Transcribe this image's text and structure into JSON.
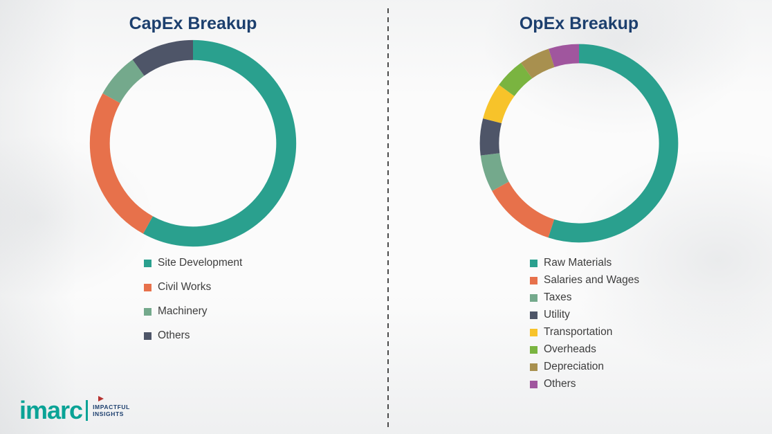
{
  "chart_data": [
    {
      "type": "pie",
      "variant": "donut",
      "title": "CapEx Breakup",
      "labels": [
        "Site Development",
        "Civil Works",
        "Machinery",
        "Others"
      ],
      "values": [
        58,
        25,
        7,
        10
      ],
      "colors": [
        "#2aa08e",
        "#e7714b",
        "#74a98c",
        "#4e5568"
      ],
      "start_angle_deg": 0,
      "direction": "clockwise",
      "legend_position": "bottom-left"
    },
    {
      "type": "pie",
      "variant": "donut",
      "title": "OpEx Breakup",
      "labels": [
        "Raw Materials",
        "Salaries and Wages",
        "Taxes",
        "Utility",
        "Transportation",
        "Overheads",
        "Depreciation",
        "Others"
      ],
      "values": [
        55,
        12,
        6,
        6,
        6,
        5,
        5,
        5
      ],
      "colors": [
        "#2aa08e",
        "#e7714b",
        "#74a98c",
        "#4e5568",
        "#f7c32a",
        "#7ab440",
        "#a8904f",
        "#a0569e"
      ],
      "start_angle_deg": 0,
      "direction": "clockwise",
      "legend_position": "bottom-left"
    }
  ],
  "logo": {
    "brand": "imarc",
    "tagline_line1": "IMPACTFUL",
    "tagline_line2": "INSIGHTS"
  },
  "palette": {
    "teal": "#2aa08e",
    "orange": "#e7714b",
    "sage": "#74a98c",
    "slate": "#4e5568",
    "amber": "#f7c32a",
    "green": "#7ab440",
    "khaki": "#a8904f",
    "purple": "#a0569e",
    "title_navy": "#1c3f6e",
    "logo_teal": "#0aa396",
    "logo_red": "#b63230",
    "divider_gray": "#4a4a4a",
    "legend_text": "#3d3d3d"
  }
}
